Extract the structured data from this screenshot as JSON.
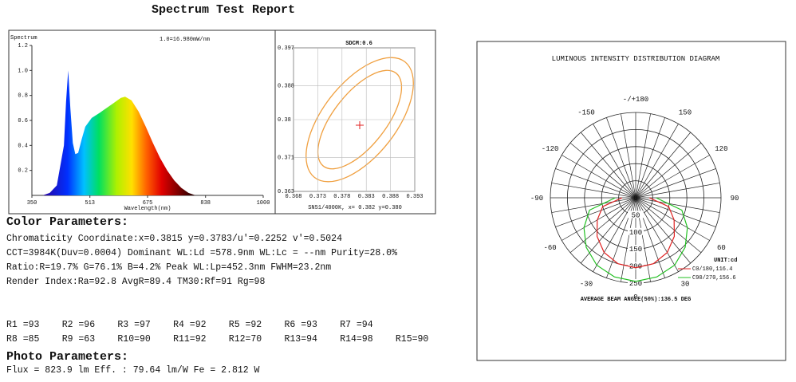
{
  "header": {
    "title": "Spectrum Test Report"
  },
  "spectrum": {
    "label": "Spectrum",
    "scale_note": "1.0=16.980mW/nm",
    "x_label": "Wavelength(nm)",
    "xlim": [
      350,
      1000
    ],
    "xticks": [
      350,
      513,
      675,
      838,
      1000
    ],
    "ylim": [
      0,
      1.2
    ],
    "yticks": [
      {
        "value": 0.2,
        "label": "0.2"
      },
      {
        "value": 0.4,
        "label": "0.4"
      },
      {
        "value": 0.6,
        "label": "0.6"
      },
      {
        "value": 0.8,
        "label": "0.8"
      },
      {
        "value": 1.0,
        "label": "1.0"
      },
      {
        "value": 1.2,
        "label": "1.2"
      }
    ],
    "wavelengths": [
      380,
      400,
      420,
      440,
      446,
      452,
      458,
      465,
      472,
      480,
      490,
      500,
      518,
      540,
      560,
      580,
      600,
      612,
      630,
      650,
      670,
      690,
      710,
      730,
      750,
      770,
      790,
      810
    ],
    "values": [
      0,
      0.02,
      0.08,
      0.4,
      0.75,
      1.0,
      0.7,
      0.42,
      0.33,
      0.34,
      0.45,
      0.55,
      0.62,
      0.66,
      0.7,
      0.74,
      0.78,
      0.79,
      0.76,
      0.67,
      0.55,
      0.42,
      0.3,
      0.2,
      0.12,
      0.06,
      0.02,
      0
    ]
  },
  "sdcm": {
    "title": "SDCM:0.6",
    "xlim": [
      0.368,
      0.393
    ],
    "xticks": [
      0.368,
      0.373,
      0.378,
      0.383,
      0.388,
      0.393
    ],
    "ylim": [
      0.363,
      0.397
    ],
    "yticks": [
      0.363,
      0.371,
      0.38,
      0.388,
      0.397
    ],
    "note": "SN51/4000K, x= 0.382 y=0.380"
  },
  "color_parameters": {
    "heading": "Color Parameters:",
    "lines": [
      "Chromaticity Coordinate:x=0.3815  y=0.3783/u'=0.2252 v'=0.5024",
      "CCT=3984K(Duv=0.0004) Dominant WL:Ld =578.9nm WL:Lc = --nm Purity=28.0%",
      "Ratio:R=19.7% G=76.1% B=4.2%  Peak WL:Lp=452.3nm  FWHM=23.2nm",
      "Render Index:Ra=92.8   AvgR=89.4  TM30:Rf=91 Rg=98"
    ],
    "rendering": [
      [
        "R1 =93",
        "R2 =96",
        "R3 =97",
        "R4 =92",
        "R5 =92",
        "R6 =93",
        "R7 =94"
      ],
      [
        "R8 =85",
        "R9 =63",
        "R10=90",
        "R11=92",
        "R12=70",
        "R13=94",
        "R14=98",
        "R15=90"
      ]
    ]
  },
  "photo_parameters": {
    "heading": "Photo Parameters:",
    "line": "Flux  = 823.9 lm   Eff. : 79.64 lm/W  Fe   = 2.812 W"
  },
  "polar": {
    "title": "LUMINOUS INTENSITY DISTRIBUTION DIAGRAM",
    "angle_ticks": [
      {
        "value": 180,
        "label": "-/+180"
      },
      -150,
      150,
      -120,
      120,
      -90,
      90,
      -60,
      60,
      -30,
      30,
      0
    ],
    "rlim": [
      0,
      250
    ],
    "rticks": [
      50,
      100,
      150,
      200,
      250
    ],
    "unit": "UNIT:cd",
    "footer": "AVERAGE BEAM ANGLE(50%):136.5 DEG",
    "angles": [
      -90,
      -75,
      -60,
      -45,
      -30,
      -15,
      0,
      15,
      30,
      45,
      60,
      75,
      90
    ],
    "series": [
      {
        "name": "C0/180,116.4",
        "color": "#e02020",
        "values": [
          40,
          100,
          130,
          160,
          185,
          200,
          205,
          200,
          185,
          160,
          130,
          100,
          40
        ]
      },
      {
        "name": "C90/270,156.6",
        "color": "#22c022",
        "values": [
          60,
          140,
          175,
          205,
          228,
          240,
          245,
          240,
          228,
          205,
          175,
          140,
          60
        ]
      }
    ]
  }
}
